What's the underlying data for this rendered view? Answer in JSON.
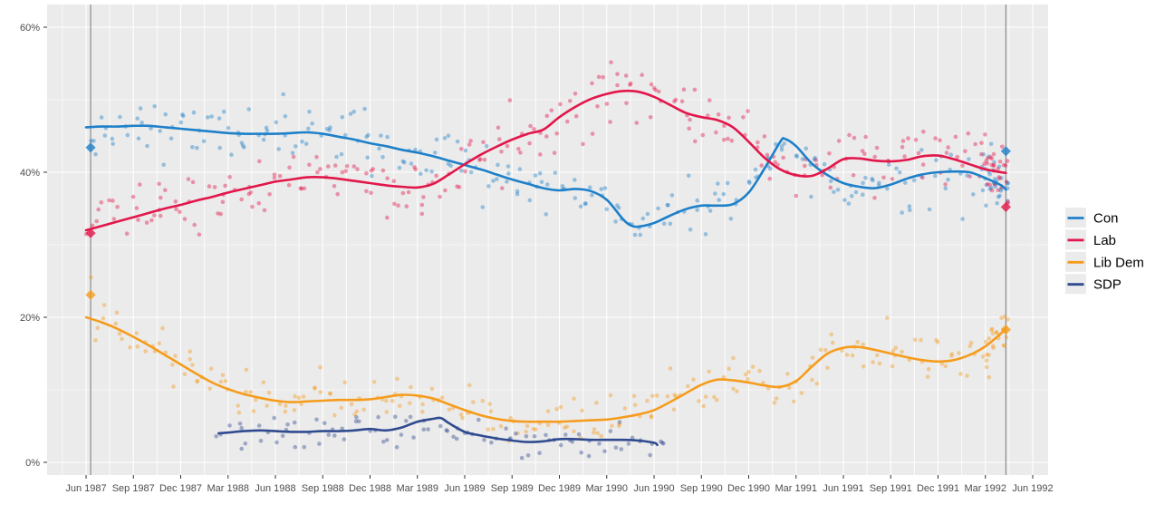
{
  "chart_data": {
    "type": "scatter",
    "smoother_lines": true,
    "description": "UK voting-intention polls by party, Jun 1987 to Jun 1992, with smoothed trend lines, individual poll points and general-election results marked as diamonds on vertical lines",
    "x_axis": {
      "tick_labels": [
        "Jun 1987",
        "Sep 1987",
        "Dec 1987",
        "Mar 1988",
        "Jun 1988",
        "Sep 1988",
        "Dec 1988",
        "Mar 1989",
        "Jun 1989",
        "Sep 1989",
        "Dec 1989",
        "Mar 1990",
        "Jun 1990",
        "Sep 1990",
        "Dec 1990",
        "Mar 1991",
        "Jun 1991",
        "Sep 1991",
        "Dec 1991",
        "Mar 1992",
        "Jun 1992"
      ],
      "tick_months": [
        0,
        3,
        6,
        9,
        12,
        15,
        18,
        21,
        24,
        27,
        30,
        33,
        36,
        39,
        42,
        45,
        48,
        51,
        54,
        57,
        60
      ],
      "range_months": [
        -2.47,
        60.98
      ]
    },
    "y_axis": {
      "tick_labels": [
        "0%",
        "20%",
        "40%",
        "60%"
      ],
      "tick_values": [
        0,
        20,
        40,
        60
      ],
      "minor_tick_values": [
        10,
        30,
        50
      ],
      "range_percent": [
        -1.75,
        63.1
      ]
    },
    "panel": {
      "bg_color": "#EBEBEB",
      "grid_major_color": "#FFFFFF",
      "grid_minor_color": "rgba(255,255,255,0.55)",
      "election_line_color": "#8C8C8C",
      "axis_text_color": "#4D4D4D",
      "tick_mark_color": "#333333"
    },
    "elections": [
      {
        "id": "1987",
        "month": 0.29,
        "results": [
          [
            "Con",
            43.4
          ],
          [
            "Lab",
            31.6
          ],
          [
            "Lib Dem",
            23.1
          ]
        ]
      },
      {
        "id": "1992",
        "month": 58.3,
        "results": [
          [
            "Con",
            42.9
          ],
          [
            "Lab",
            35.2
          ],
          [
            "Lib Dem",
            18.3
          ]
        ]
      }
    ],
    "legend": {
      "position": "right",
      "key_bg": "#EBEBEB",
      "items": [
        "Con",
        "Lab",
        "Lib Dem",
        "SDP"
      ]
    },
    "series": [
      {
        "name": "Con",
        "color": "#1E80C9",
        "trend": [
          [
            0,
            46.2
          ],
          [
            1,
            46.3
          ],
          [
            2,
            46.3
          ],
          [
            3,
            46.4
          ],
          [
            4,
            46.4
          ],
          [
            5,
            46.2
          ],
          [
            6,
            46.0
          ],
          [
            7,
            45.8
          ],
          [
            8,
            45.6
          ],
          [
            9,
            45.4
          ],
          [
            10,
            45.3
          ],
          [
            11,
            45.3
          ],
          [
            12,
            45.3
          ],
          [
            13,
            45.4
          ],
          [
            14,
            45.5
          ],
          [
            15,
            45.3
          ],
          [
            16,
            44.9
          ],
          [
            17,
            44.5
          ],
          [
            18,
            44.0
          ],
          [
            19,
            43.6
          ],
          [
            20,
            43.1
          ],
          [
            21,
            42.7
          ],
          [
            22,
            42.2
          ],
          [
            23,
            41.6
          ],
          [
            24,
            41.0
          ],
          [
            25,
            40.4
          ],
          [
            26,
            39.7
          ],
          [
            27,
            39.0
          ],
          [
            28,
            38.4
          ],
          [
            29,
            37.8
          ],
          [
            30,
            37.5
          ],
          [
            31,
            37.7
          ],
          [
            32,
            37.4
          ],
          [
            33,
            36.2
          ],
          [
            34,
            33.6
          ],
          [
            34.5,
            32.7
          ],
          [
            35,
            32.5
          ],
          [
            36,
            33.0
          ],
          [
            37,
            34.0
          ],
          [
            38,
            34.9
          ],
          [
            39,
            35.4
          ],
          [
            40,
            35.4
          ],
          [
            41,
            35.6
          ],
          [
            42,
            37.2
          ],
          [
            43,
            40.5
          ],
          [
            44,
            44.2
          ],
          [
            44.3,
            44.6
          ],
          [
            45,
            43.6
          ],
          [
            46,
            41.2
          ],
          [
            47,
            39.6
          ],
          [
            48,
            38.5
          ],
          [
            49,
            38.0
          ],
          [
            50,
            37.8
          ],
          [
            51,
            38.3
          ],
          [
            52,
            39.1
          ],
          [
            53,
            39.7
          ],
          [
            54,
            40.0
          ],
          [
            55,
            40.1
          ],
          [
            56,
            40.0
          ],
          [
            57,
            39.2
          ],
          [
            58,
            38.2
          ],
          [
            58.3,
            37.6
          ]
        ],
        "scatter_render_hint": {
          "seed": 11,
          "start": 0.3,
          "end": 58.35,
          "per_month": 4.2,
          "sd": 2.0,
          "burst_from": 56.8,
          "burst_per_month": 16
        }
      },
      {
        "name": "Lab",
        "color": "#E2164A",
        "trend": [
          [
            0,
            32.0
          ],
          [
            1,
            32.6
          ],
          [
            2,
            33.2
          ],
          [
            3,
            33.8
          ],
          [
            4,
            34.4
          ],
          [
            5,
            35.0
          ],
          [
            6,
            35.5
          ],
          [
            7,
            36.1
          ],
          [
            8,
            36.6
          ],
          [
            9,
            37.2
          ],
          [
            10,
            37.7
          ],
          [
            11,
            38.2
          ],
          [
            12,
            38.7
          ],
          [
            13,
            39.0
          ],
          [
            14,
            39.3
          ],
          [
            15,
            39.3
          ],
          [
            16,
            39.1
          ],
          [
            17,
            38.8
          ],
          [
            18,
            38.5
          ],
          [
            19,
            38.2
          ],
          [
            20,
            38.0
          ],
          [
            21,
            37.9
          ],
          [
            22,
            38.4
          ],
          [
            23,
            39.7
          ],
          [
            24,
            41.1
          ],
          [
            25,
            42.4
          ],
          [
            26,
            43.5
          ],
          [
            27,
            44.5
          ],
          [
            28,
            45.3
          ],
          [
            29,
            45.9
          ],
          [
            30,
            47.6
          ],
          [
            31,
            49.0
          ],
          [
            32,
            50.1
          ],
          [
            33,
            50.8
          ],
          [
            34,
            51.2
          ],
          [
            35,
            51.1
          ],
          [
            36,
            50.4
          ],
          [
            37,
            49.3
          ],
          [
            38,
            48.2
          ],
          [
            39,
            47.6
          ],
          [
            40,
            47.2
          ],
          [
            41,
            46.2
          ],
          [
            42,
            44.2
          ],
          [
            43,
            42.0
          ],
          [
            44,
            40.4
          ],
          [
            45,
            39.6
          ],
          [
            46,
            39.5
          ],
          [
            47,
            40.5
          ],
          [
            48,
            41.8
          ],
          [
            49,
            41.9
          ],
          [
            50,
            41.6
          ],
          [
            51,
            41.5
          ],
          [
            52,
            41.7
          ],
          [
            53,
            42.2
          ],
          [
            54,
            42.3
          ],
          [
            55,
            41.8
          ],
          [
            56,
            41.1
          ],
          [
            57,
            40.4
          ],
          [
            58,
            40.0
          ],
          [
            58.3,
            39.9
          ]
        ],
        "scatter_render_hint": {
          "seed": 23,
          "start": 0.3,
          "end": 58.35,
          "per_month": 4.2,
          "sd": 2.1,
          "burst_from": 56.8,
          "burst_per_month": 16
        }
      },
      {
        "name": "Lib Dem",
        "color": "#F59C1D",
        "trend": [
          [
            0,
            20.0
          ],
          [
            1,
            19.3
          ],
          [
            2,
            18.4
          ],
          [
            3,
            17.3
          ],
          [
            4,
            16.1
          ],
          [
            5,
            14.8
          ],
          [
            6,
            13.5
          ],
          [
            7,
            12.2
          ],
          [
            8,
            11.0
          ],
          [
            9,
            10.1
          ],
          [
            10,
            9.4
          ],
          [
            11,
            8.9
          ],
          [
            12,
            8.5
          ],
          [
            13,
            8.3
          ],
          [
            14,
            8.4
          ],
          [
            15,
            8.5
          ],
          [
            16,
            8.6
          ],
          [
            17,
            8.6
          ],
          [
            18,
            8.7
          ],
          [
            19,
            9.0
          ],
          [
            20,
            9.3
          ],
          [
            21,
            9.2
          ],
          [
            22,
            8.8
          ],
          [
            23,
            8.0
          ],
          [
            24,
            7.2
          ],
          [
            25,
            6.5
          ],
          [
            26,
            6.0
          ],
          [
            27,
            5.7
          ],
          [
            28,
            5.6
          ],
          [
            29,
            5.6
          ],
          [
            30,
            5.6
          ],
          [
            31,
            5.7
          ],
          [
            32,
            5.8
          ],
          [
            33,
            5.9
          ],
          [
            34,
            6.2
          ],
          [
            35,
            6.6
          ],
          [
            36,
            7.2
          ],
          [
            37,
            8.3
          ],
          [
            38,
            9.5
          ],
          [
            39,
            10.7
          ],
          [
            40,
            11.4
          ],
          [
            41,
            11.3
          ],
          [
            42,
            11.0
          ],
          [
            43,
            10.6
          ],
          [
            44,
            10.4
          ],
          [
            45,
            11.2
          ],
          [
            46,
            13.2
          ],
          [
            47,
            15.0
          ],
          [
            48,
            15.8
          ],
          [
            49,
            15.9
          ],
          [
            50,
            15.5
          ],
          [
            51,
            15.0
          ],
          [
            52,
            14.5
          ],
          [
            53,
            14.1
          ],
          [
            54,
            13.9
          ],
          [
            55,
            14.1
          ],
          [
            56,
            14.8
          ],
          [
            57,
            16.0
          ],
          [
            58,
            17.8
          ],
          [
            58.3,
            18.5
          ]
        ],
        "scatter_render_hint": {
          "seed": 37,
          "start": 0.3,
          "end": 58.35,
          "per_month": 3.8,
          "sd": 1.7,
          "burst_from": 56.8,
          "burst_per_month": 12
        }
      },
      {
        "name": "SDP",
        "color": "#2F4A8F",
        "trend": [
          [
            8.4,
            4.0
          ],
          [
            9,
            4.1
          ],
          [
            10,
            4.3
          ],
          [
            11,
            4.4
          ],
          [
            12,
            4.3
          ],
          [
            13,
            4.2
          ],
          [
            14,
            4.2
          ],
          [
            15,
            4.3
          ],
          [
            16,
            4.3
          ],
          [
            17,
            4.4
          ],
          [
            18,
            4.6
          ],
          [
            19,
            4.4
          ],
          [
            20,
            4.8
          ],
          [
            21,
            5.6
          ],
          [
            22,
            6.0
          ],
          [
            22.5,
            6.1
          ],
          [
            23,
            5.4
          ],
          [
            24,
            4.2
          ],
          [
            25,
            3.7
          ],
          [
            26,
            3.3
          ],
          [
            27,
            3.0
          ],
          [
            28,
            2.8
          ],
          [
            29,
            2.9
          ],
          [
            30,
            3.2
          ],
          [
            31,
            3.2
          ],
          [
            32,
            3.1
          ],
          [
            33,
            3.1
          ],
          [
            34,
            3.1
          ],
          [
            35,
            3.0
          ],
          [
            36,
            2.7
          ],
          [
            36.2,
            2.4
          ]
        ],
        "scatter_render_hint": {
          "seed": 51,
          "start": 8.5,
          "end": 37.2,
          "per_month": 3.2,
          "sd": 1.25
        }
      }
    ]
  }
}
